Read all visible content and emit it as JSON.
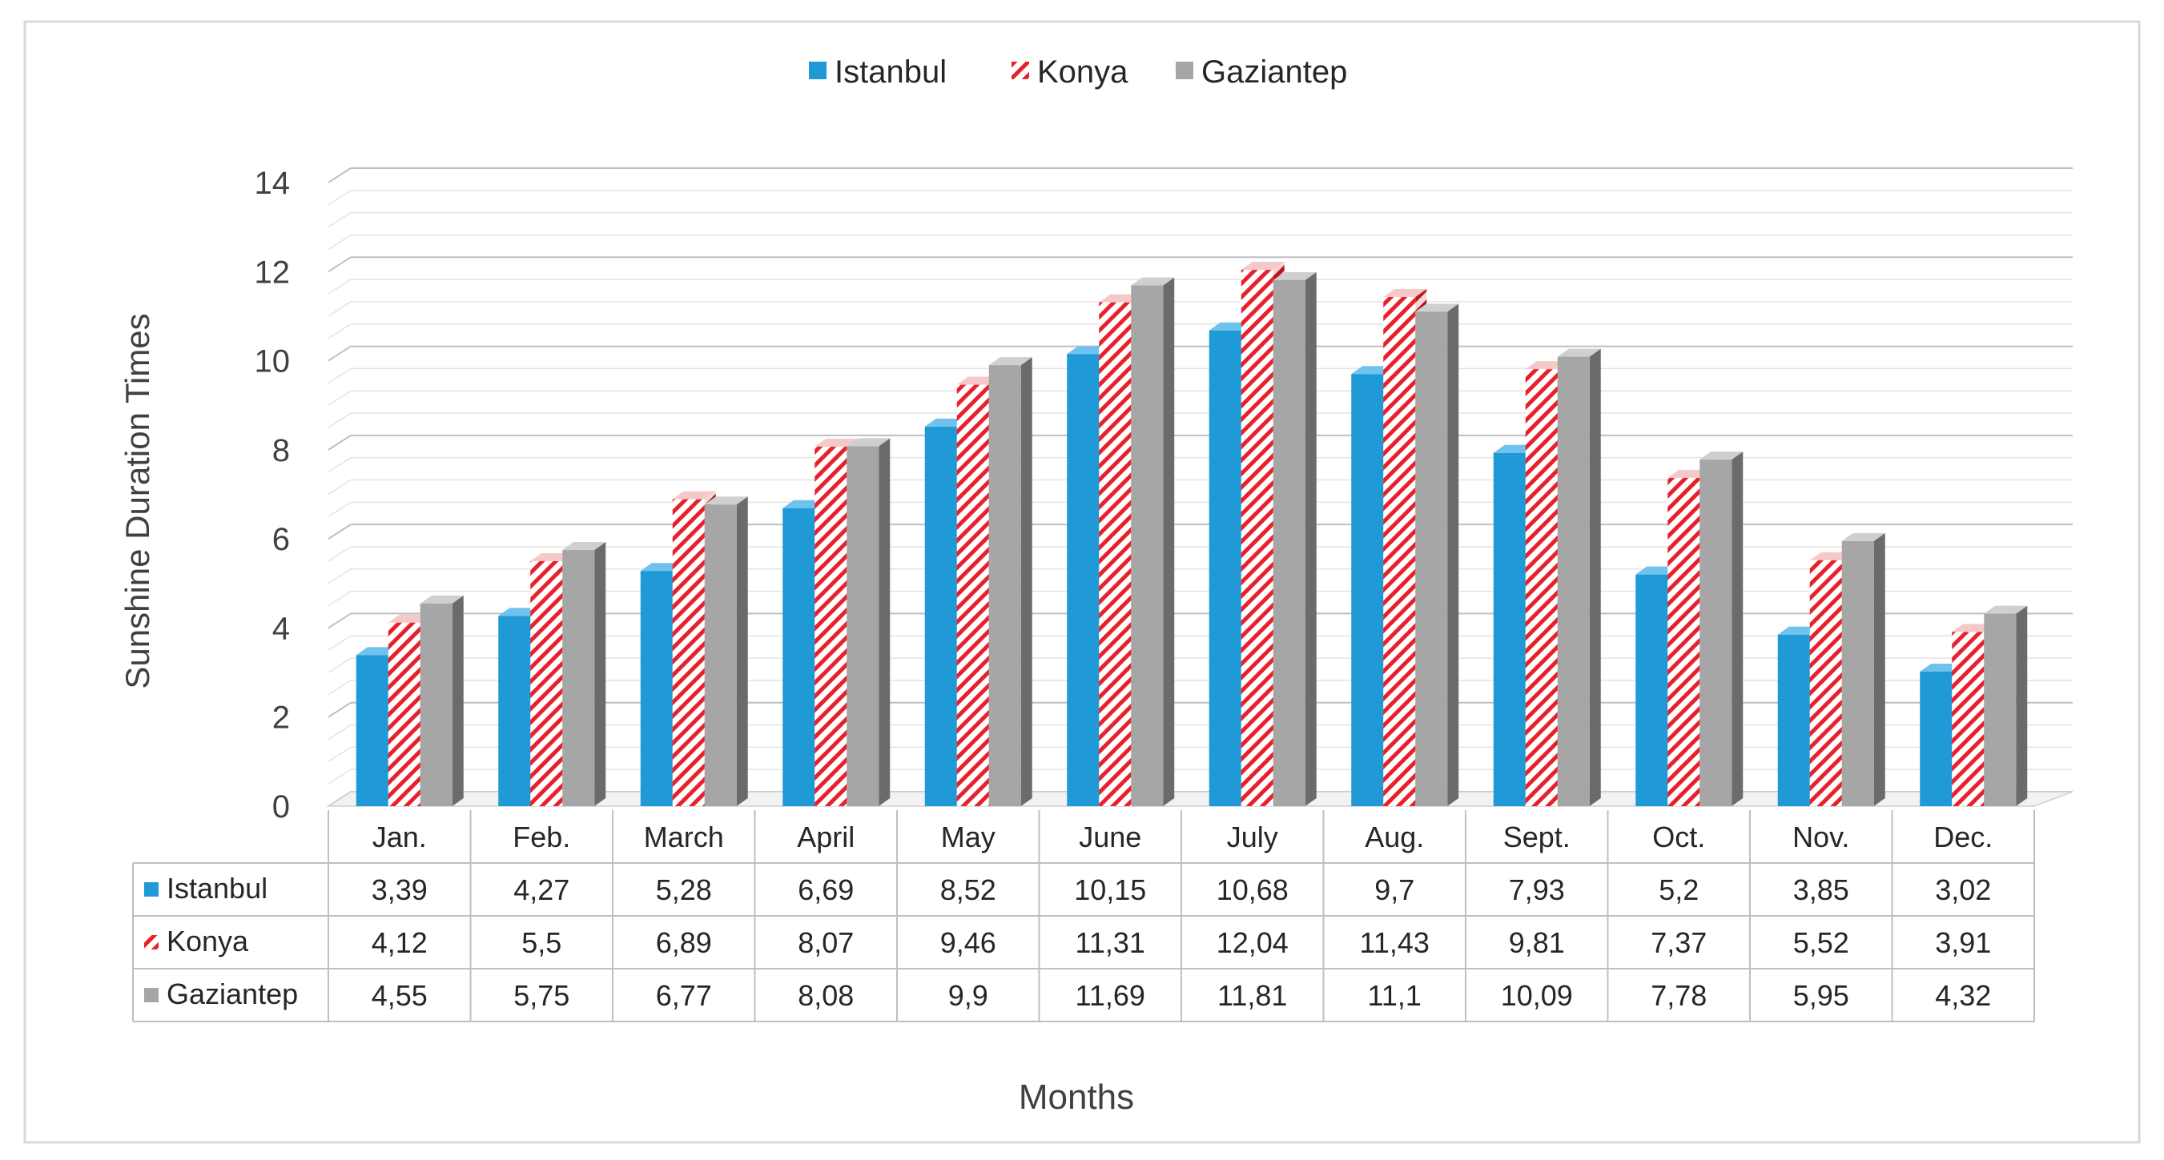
{
  "chart_data": {
    "type": "bar",
    "title": "",
    "xlabel": "Months",
    "ylabel": "Sunshine Duration Times",
    "ylim": [
      0,
      14
    ],
    "yticks": [
      0,
      2,
      4,
      6,
      8,
      10,
      12,
      14
    ],
    "grid": true,
    "legend_position": "top-center",
    "categories": [
      "Jan.",
      "Feb.",
      "March",
      "April",
      "May",
      "June",
      "July",
      "Aug.",
      "Sept.",
      "Oct.",
      "Nov.",
      "Dec."
    ],
    "series": [
      {
        "name": "Istanbul",
        "color": "#1f9ad6",
        "pattern": "solid",
        "values": [
          3.39,
          4.27,
          5.28,
          6.69,
          8.52,
          10.15,
          10.68,
          9.7,
          7.93,
          5.2,
          3.85,
          3.02
        ],
        "labels": [
          "3,39",
          "4,27",
          "5,28",
          "6,69",
          "8,52",
          "10,15",
          "10,68",
          "9,7",
          "7,93",
          "5,2",
          "3,85",
          "3,02"
        ]
      },
      {
        "name": "Konya",
        "color": "#e8202a",
        "pattern": "diagonal-stripes",
        "values": [
          4.12,
          5.5,
          6.89,
          8.07,
          9.46,
          11.31,
          12.04,
          11.43,
          9.81,
          7.37,
          5.52,
          3.91
        ],
        "labels": [
          "4,12",
          "5,5",
          "6,89",
          "8,07",
          "9,46",
          "11,31",
          "12,04",
          "11,43",
          "9,81",
          "7,37",
          "5,52",
          "3,91"
        ]
      },
      {
        "name": "Gaziantep",
        "color": "#a6a6a6",
        "pattern": "solid",
        "values": [
          4.55,
          5.75,
          6.77,
          8.08,
          9.9,
          11.69,
          11.81,
          11.1,
          10.09,
          7.78,
          5.95,
          4.32
        ],
        "labels": [
          "4,55",
          "5,75",
          "6,77",
          "8,08",
          "9,9",
          "11,69",
          "11,81",
          "11,1",
          "10,09",
          "7,78",
          "5,95",
          "4,32"
        ]
      }
    ]
  }
}
